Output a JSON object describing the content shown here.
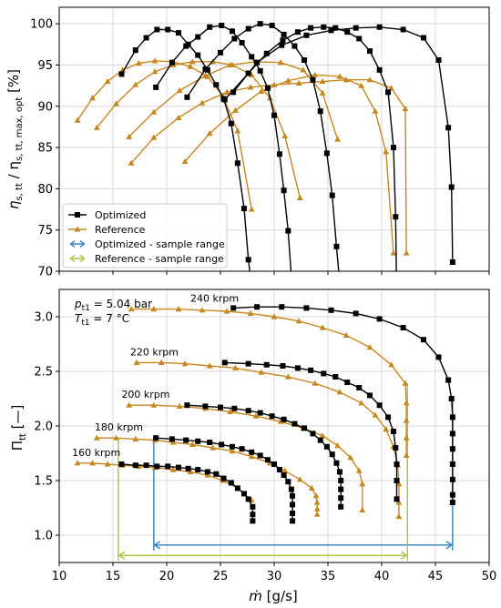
{
  "colors": {
    "optimized": "#000000",
    "reference": "#c8861e",
    "optimized_range": "#2d7fc0",
    "reference_range": "#a8c23a",
    "grid": "#d9d9d9"
  },
  "chart_data": [
    {
      "type": "line",
      "ylabel_main": "η",
      "ylabel_sub1": "s, tt",
      "ylabel_mid": " / η",
      "ylabel_sub2": "s, tt, max, opt",
      "ylabel_unit": " [%]",
      "ylim": [
        70,
        102
      ],
      "yticks": [
        "70",
        "75",
        "80",
        "85",
        "90",
        "95",
        "100"
      ],
      "xlim": [
        10,
        50
      ],
      "grid": true,
      "legend_position": "lower-left",
      "legend": [
        "Optimized",
        "Reference",
        "Optimized - sample range",
        "Reference - sample range"
      ],
      "series": [
        {
          "name": "Optimized",
          "speed": "160 krpm",
          "x": [
            15.8,
            17.1,
            18.1,
            19.1,
            20.1,
            21.1,
            22.0,
            22.9,
            23.8,
            24.6,
            25.3,
            26.0,
            26.6,
            27.2,
            27.6,
            28.0
          ],
          "y": [
            93.9,
            96.8,
            98.3,
            99.3,
            99.3,
            98.9,
            97.5,
            96.2,
            94.4,
            92.6,
            90.9,
            87.9,
            83.1,
            77.6,
            71.4,
            67.0
          ]
        },
        {
          "name": "Optimized",
          "speed": "180 krpm",
          "x": [
            19.0,
            20.5,
            21.8,
            22.9,
            24.0,
            25.1,
            26.1,
            27.0,
            27.9,
            28.7,
            29.4,
            30.0,
            30.5,
            30.9,
            31.3,
            31.6
          ],
          "y": [
            92.3,
            95.3,
            97.3,
            98.4,
            99.6,
            99.8,
            99.1,
            97.7,
            96.0,
            94.3,
            92.2,
            88.9,
            84.2,
            79.8,
            74.9,
            69.3
          ]
        },
        {
          "name": "Optimized",
          "speed": "200 krpm",
          "x": [
            21.9,
            23.6,
            25.0,
            26.3,
            27.6,
            28.7,
            29.8,
            30.9,
            31.9,
            32.8,
            33.6,
            34.3,
            34.9,
            35.4,
            35.8,
            36.1
          ],
          "y": [
            91.1,
            94.5,
            96.5,
            98.2,
            99.4,
            100.0,
            99.8,
            98.7,
            97.3,
            95.6,
            93.2,
            89.4,
            84.3,
            79.2,
            73.0,
            68.6
          ]
        },
        {
          "name": "Optimized",
          "speed": "220 krpm",
          "x": [
            25.4,
            27.6,
            29.3,
            30.8,
            32.2,
            33.4,
            34.6,
            35.7,
            36.8,
            37.9,
            38.9,
            39.8,
            40.6,
            41.1,
            41.3,
            41.4
          ],
          "y": [
            90.8,
            94.0,
            96.4,
            98.0,
            99.0,
            99.5,
            99.6,
            99.5,
            99.0,
            98.2,
            96.7,
            94.4,
            91.7,
            85.0,
            76.6,
            67.1
          ]
        },
        {
          "name": "Optimized",
          "speed": "240 krpm",
          "x": [
            26.2,
            28.4,
            30.7,
            33.0,
            35.3,
            37.6,
            39.8,
            42.0,
            43.9,
            45.3,
            46.2,
            46.5,
            46.6
          ],
          "y": [
            91.7,
            95.3,
            97.4,
            98.6,
            99.2,
            99.5,
            99.6,
            99.3,
            98.3,
            95.6,
            87.4,
            80.2,
            71.1
          ]
        },
        {
          "name": "Reference",
          "speed": "160 krpm",
          "x": [
            11.7,
            13.1,
            14.5,
            15.9,
            17.4,
            18.9,
            20.6,
            22.2,
            23.8,
            25.2,
            26.6,
            27.9
          ],
          "y": [
            88.3,
            91.0,
            93.0,
            94.4,
            95.2,
            95.5,
            95.4,
            94.8,
            93.6,
            91.3,
            87.0,
            77.5
          ]
        },
        {
          "name": "Reference",
          "speed": "180 krpm",
          "x": [
            13.5,
            15.3,
            17.1,
            18.9,
            20.6,
            22.4,
            24.3,
            26.1,
            27.9,
            29.6,
            31.0,
            32.4
          ],
          "y": [
            87.4,
            90.3,
            92.6,
            94.2,
            95.0,
            95.4,
            95.4,
            95.0,
            93.8,
            91.0,
            86.4,
            78.9
          ]
        },
        {
          "name": "Reference",
          "speed": "200 krpm",
          "x": [
            16.5,
            18.8,
            21.2,
            23.6,
            25.9,
            28.3,
            30.6,
            32.7,
            34.5,
            35.9
          ],
          "y": [
            86.3,
            89.3,
            91.9,
            93.7,
            95.0,
            95.4,
            95.3,
            94.4,
            91.6,
            86.0
          ]
        },
        {
          "name": "Reference",
          "speed": "220 krpm",
          "x": [
            21.7,
            24.0,
            26.4,
            28.8,
            31.3,
            33.8,
            36.1,
            38.1,
            39.4,
            40.4,
            41.1
          ],
          "y": [
            83.3,
            86.7,
            89.5,
            91.8,
            93.1,
            93.8,
            93.6,
            92.5,
            89.4,
            84.5,
            72.2
          ]
        },
        {
          "name": "Reference",
          "speed": "240 krpm",
          "x": [
            16.7,
            18.8,
            21.1,
            23.3,
            25.6,
            27.8,
            30.0,
            32.3,
            34.5,
            36.7,
            38.9,
            40.9,
            42.2,
            42.3
          ],
          "y": [
            83.1,
            86.2,
            88.6,
            90.4,
            91.7,
            92.3,
            92.6,
            92.8,
            93.0,
            93.2,
            93.2,
            92.2,
            89.7,
            72.2
          ]
        }
      ]
    },
    {
      "type": "line",
      "ylabel_main": "Π",
      "ylabel_sub1": "tt",
      "ylabel_unit": " [—]",
      "xlabel_main": "ṁ",
      "xlabel_unit": " [g/s]",
      "xlim": [
        10,
        50
      ],
      "ylim": [
        0.75,
        3.25
      ],
      "xticks": [
        "10",
        "15",
        "20",
        "25",
        "30",
        "35",
        "40",
        "45",
        "50"
      ],
      "yticks": [
        "1.0",
        "1.5",
        "2.0",
        "2.5",
        "3.0"
      ],
      "grid": true,
      "condition_1_main": "p",
      "condition_1_sub": "t1",
      "condition_1_value": " = 5.04 bar",
      "condition_2_main": "T",
      "condition_2_sub": "t1",
      "condition_2_value": " = 7 °C",
      "speed_labels": [
        "160 krpm",
        "180 krpm",
        "200 krpm",
        "220 krpm",
        "240 krpm"
      ],
      "optimized_sample_range": [
        18.8,
        46.6
      ],
      "reference_sample_range": [
        15.5,
        42.4
      ],
      "series": [
        {
          "name": "Optimized",
          "speed": "160 krpm",
          "x": [
            15.8,
            17.1,
            18.1,
            19.1,
            20.1,
            21.1,
            22.0,
            22.9,
            23.8,
            24.6,
            25.3,
            26.0,
            26.6,
            27.2,
            27.6,
            28.0,
            28.0,
            28.0
          ],
          "y": [
            1.65,
            1.64,
            1.64,
            1.63,
            1.63,
            1.62,
            1.61,
            1.6,
            1.58,
            1.56,
            1.52,
            1.48,
            1.43,
            1.38,
            1.33,
            1.26,
            1.19,
            1.13
          ]
        },
        {
          "name": "Optimized",
          "speed": "180 krpm",
          "x": [
            19.0,
            20.5,
            21.8,
            22.9,
            24.0,
            25.1,
            26.1,
            27.0,
            27.9,
            28.7,
            29.4,
            30.0,
            30.5,
            30.9,
            31.3,
            31.6,
            31.7,
            31.7,
            31.7,
            31.7
          ],
          "y": [
            1.89,
            1.88,
            1.87,
            1.86,
            1.85,
            1.83,
            1.81,
            1.79,
            1.76,
            1.73,
            1.69,
            1.65,
            1.6,
            1.55,
            1.49,
            1.42,
            1.36,
            1.28,
            1.2,
            1.13
          ]
        },
        {
          "name": "Optimized",
          "speed": "200 krpm",
          "x": [
            21.9,
            23.6,
            25.0,
            26.3,
            27.6,
            28.7,
            29.8,
            30.9,
            31.9,
            32.8,
            33.6,
            34.3,
            34.9,
            35.4,
            35.8,
            36.1,
            36.2,
            36.2,
            36.2,
            36.2
          ],
          "y": [
            2.19,
            2.18,
            2.17,
            2.16,
            2.14,
            2.12,
            2.09,
            2.06,
            2.02,
            1.98,
            1.93,
            1.87,
            1.81,
            1.74,
            1.66,
            1.58,
            1.5,
            1.42,
            1.34,
            1.26
          ]
        },
        {
          "name": "Optimized",
          "speed": "220 krpm",
          "x": [
            25.4,
            27.6,
            29.3,
            30.8,
            32.2,
            33.4,
            34.6,
            35.7,
            36.8,
            37.9,
            38.9,
            39.8,
            40.6,
            41.1,
            41.3,
            41.4,
            41.4,
            41.4
          ],
          "y": [
            2.58,
            2.57,
            2.56,
            2.55,
            2.53,
            2.51,
            2.48,
            2.45,
            2.4,
            2.35,
            2.28,
            2.19,
            2.08,
            1.95,
            1.8,
            1.65,
            1.5,
            1.33
          ]
        },
        {
          "name": "Optimized",
          "speed": "240 krpm",
          "x": [
            26.2,
            28.4,
            30.7,
            33.0,
            35.3,
            37.6,
            39.8,
            42.0,
            43.9,
            45.3,
            46.2,
            46.5,
            46.6,
            46.6,
            46.6,
            46.6,
            46.6,
            46.6,
            46.6
          ],
          "y": [
            3.08,
            3.09,
            3.09,
            3.08,
            3.06,
            3.03,
            2.98,
            2.9,
            2.79,
            2.63,
            2.42,
            2.25,
            2.08,
            1.93,
            1.79,
            1.65,
            1.51,
            1.37,
            1.3
          ]
        },
        {
          "name": "Reference",
          "speed": "160 krpm",
          "x": [
            11.7,
            13.1,
            14.5,
            15.9,
            17.4,
            18.9,
            20.6,
            22.2,
            23.8,
            25.2,
            26.6,
            27.9
          ],
          "y": [
            1.66,
            1.66,
            1.65,
            1.64,
            1.63,
            1.62,
            1.6,
            1.58,
            1.55,
            1.5,
            1.43,
            1.32
          ]
        },
        {
          "name": "Reference",
          "speed": "180 krpm",
          "x": [
            13.5,
            15.3,
            17.1,
            18.9,
            20.6,
            22.4,
            24.3,
            26.1,
            27.9,
            29.6,
            31.0,
            32.4,
            33.5,
            33.9,
            34.0,
            34.0,
            34.0
          ],
          "y": [
            1.89,
            1.89,
            1.88,
            1.87,
            1.85,
            1.83,
            1.8,
            1.77,
            1.72,
            1.66,
            1.59,
            1.51,
            1.43,
            1.36,
            1.3,
            1.24,
            1.19
          ]
        },
        {
          "name": "Reference",
          "speed": "200 krpm",
          "x": [
            16.5,
            18.8,
            21.2,
            23.6,
            25.9,
            28.3,
            30.6,
            32.7,
            34.5,
            35.9,
            37.1,
            37.9,
            38.2,
            38.2
          ],
          "y": [
            2.19,
            2.19,
            2.18,
            2.16,
            2.13,
            2.09,
            2.04,
            1.98,
            1.91,
            1.82,
            1.71,
            1.59,
            1.47,
            1.23
          ]
        },
        {
          "name": "Reference",
          "speed": "220 krpm",
          "x": [
            17.2,
            19.5,
            21.7,
            24.0,
            26.4,
            28.8,
            31.3,
            33.8,
            36.1,
            38.1,
            39.4,
            40.4,
            41.1,
            41.5,
            41.6,
            41.6,
            41.6
          ],
          "y": [
            2.58,
            2.58,
            2.57,
            2.55,
            2.53,
            2.49,
            2.45,
            2.39,
            2.31,
            2.21,
            2.1,
            1.97,
            1.81,
            1.64,
            1.47,
            1.3,
            1.17
          ]
        },
        {
          "name": "Reference",
          "speed": "240 krpm",
          "x": [
            16.7,
            18.8,
            21.1,
            23.3,
            25.6,
            27.8,
            30.0,
            32.3,
            34.5,
            36.7,
            38.9,
            40.9,
            42.2,
            42.3,
            42.3,
            42.3,
            42.3
          ],
          "y": [
            3.07,
            3.07,
            3.07,
            3.06,
            3.05,
            3.03,
            3.0,
            2.96,
            2.9,
            2.83,
            2.72,
            2.56,
            2.39,
            2.21,
            2.05,
            1.89,
            1.73
          ]
        }
      ]
    }
  ]
}
